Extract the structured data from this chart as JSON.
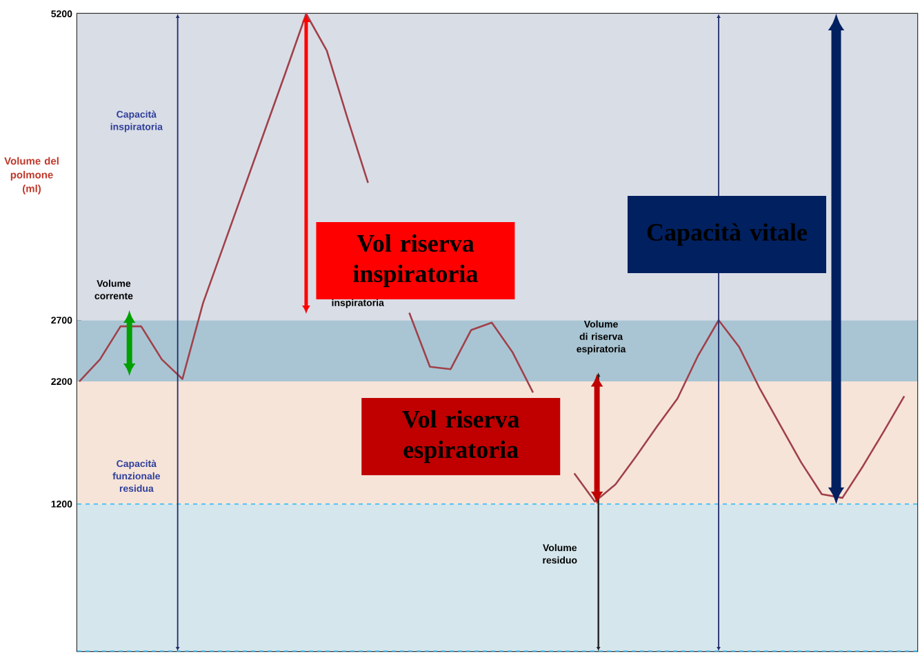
{
  "chart_data": {
    "type": "line",
    "ylabel": "Volume del polmone (ml)",
    "categories": [
      null,
      null,
      null,
      null,
      null,
      null,
      null,
      null,
      null,
      null,
      null,
      null,
      null,
      null,
      null,
      null,
      null,
      null,
      null,
      null,
      null,
      null,
      null,
      null,
      null,
      null,
      null,
      null,
      null,
      null,
      null,
      null,
      null,
      null,
      null,
      null,
      null,
      null,
      null,
      null,
      null
    ],
    "series": [
      {
        "color": "#a0404a",
        "values": [
          2200,
          2380,
          2650,
          2650,
          2380,
          2220,
          2840,
          3310,
          3780,
          4250,
          4720,
          5200,
          4900,
          4350,
          3820,
          null,
          2760,
          2320,
          2300,
          2620,
          2680,
          2440,
          2110,
          null,
          1450,
          1220,
          1360,
          1590,
          1830,
          2060,
          2410,
          2700,
          2480,
          2140,
          1840,
          1540,
          1280,
          1250,
          1510,
          1790,
          2080
        ]
      }
    ],
    "ylim": [
      0,
      5200
    ],
    "yticks": [
      1200,
      2200,
      2700,
      5200
    ],
    "tick_labels": "y",
    "marker": "none",
    "line_style": "solid",
    "bands": [
      {
        "axis": "y",
        "from": 0,
        "to": 1200,
        "color": "#d5e6ec"
      },
      {
        "axis": "y",
        "from": 1200,
        "to": 2200,
        "color": "#f6e4d8"
      },
      {
        "axis": "y",
        "from": 2200,
        "to": 2700,
        "color": "#a9c5d3"
      },
      {
        "axis": "y",
        "from": 2700,
        "to": 5200,
        "color": "#d9dde6"
      }
    ],
    "ref_lines": [
      {
        "axis": "y",
        "value": 1200,
        "color": "#29b6f6",
        "line_style": "dashed"
      },
      {
        "axis": "y",
        "value": 0,
        "color": "#29b6f6",
        "line_style": "dashed"
      }
    ],
    "annotations": [
      "Capacità inspiratoria",
      "Volume corrente",
      "inspiratoria",
      "Vol riserva inspiratoria",
      "Capacità vitale",
      "Volume di riserva espiratoria",
      "Vol riserva espiratoria",
      "Capacità funzionale residua",
      "Volume residuo"
    ]
  }
}
